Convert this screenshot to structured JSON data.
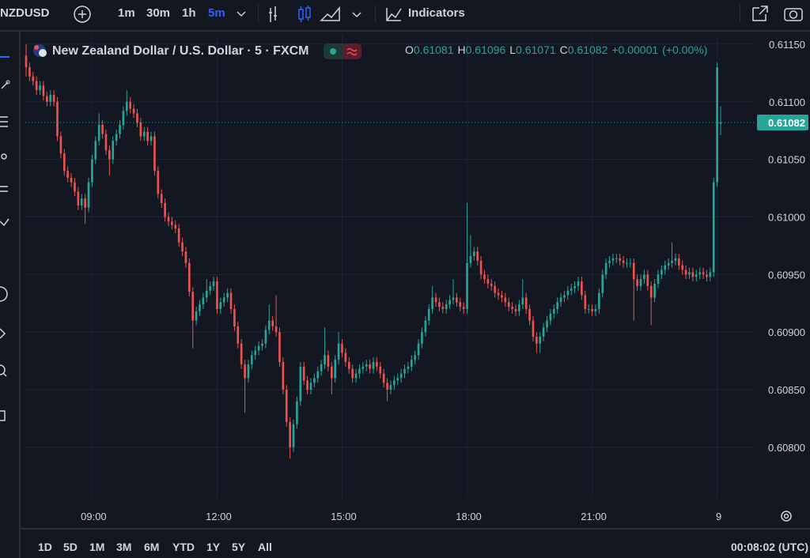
{
  "toolbar": {
    "symbol": "NZDUSD",
    "intervals": [
      "1m",
      "30m",
      "1h",
      "5m"
    ],
    "indicators": "Indicators"
  },
  "chart_data": {
    "type": "candlestick",
    "title": "New Zealand Dollar / U.S. Dollar · 5 · FXCM",
    "ohlc_labels": [
      "O",
      "H",
      "L",
      "C"
    ],
    "change": "+0.00001",
    "change_percent": "(+0.00%)",
    "up_color": "#26a69a",
    "down_color": "#ef5350",
    "grid": true,
    "categories": [
      null,
      null,
      null,
      null,
      null,
      null,
      null,
      null,
      null,
      null,
      null,
      null,
      null,
      null,
      null,
      null,
      null,
      null,
      null,
      "09:00",
      null,
      null,
      null,
      null,
      null,
      null,
      null,
      null,
      null,
      null,
      null,
      null,
      null,
      null,
      null,
      null,
      null,
      null,
      null,
      null,
      null,
      null,
      null,
      null,
      null,
      null,
      null,
      null,
      null,
      null,
      null,
      null,
      null,
      null,
      null,
      "12:00",
      null,
      null,
      null,
      null,
      null,
      null,
      null,
      null,
      null,
      null,
      null,
      null,
      null,
      null,
      null,
      null,
      null,
      null,
      null,
      null,
      null,
      null,
      null,
      null,
      null,
      null,
      null,
      null,
      null,
      null,
      null,
      null,
      null,
      null,
      null,
      "15:00",
      null,
      null,
      null,
      null,
      null,
      null,
      null,
      null,
      null,
      null,
      null,
      null,
      null,
      null,
      null,
      null,
      null,
      null,
      null,
      null,
      null,
      null,
      null,
      null,
      null,
      null,
      null,
      null,
      null,
      null,
      null,
      null,
      null,
      null,
      null,
      "18:00",
      null,
      null,
      null,
      null,
      null,
      null,
      null,
      null,
      null,
      null,
      null,
      null,
      null,
      null,
      null,
      null,
      null,
      null,
      null,
      null,
      null,
      null,
      null,
      null,
      null,
      null,
      null,
      null,
      null,
      null,
      null,
      null,
      null,
      null,
      null,
      "21:00",
      null,
      null,
      null,
      null,
      null,
      null,
      null,
      null,
      null,
      null,
      null,
      null,
      null,
      null,
      null,
      null,
      null,
      null,
      null,
      null,
      null,
      null,
      null,
      null,
      null,
      null,
      null,
      null,
      null,
      null,
      null,
      null,
      null,
      null,
      null,
      "9",
      null
    ],
    "open": [
      0.6114,
      0.6113,
      0.61122,
      0.61118,
      0.6111,
      0.61114,
      0.61105,
      0.611,
      0.61106,
      0.611,
      0.6107,
      0.61055,
      0.6104,
      0.61034,
      0.6103,
      0.61022,
      0.6101,
      0.61016,
      0.61008,
      0.6103,
      0.6105,
      0.61066,
      0.6108,
      0.61072,
      0.61058,
      0.6105,
      0.61066,
      0.61072,
      0.6108,
      0.61092,
      0.611,
      0.61094,
      0.6109,
      0.61082,
      0.6107,
      0.61074,
      0.61066,
      0.6107,
      0.6104,
      0.6102,
      0.61012,
      0.61,
      0.60996,
      0.60993,
      0.6099,
      0.60978,
      0.6097,
      0.6096,
      0.60935,
      0.6091,
      0.60918,
      0.60924,
      0.6093,
      0.60936,
      0.6094,
      0.60944,
      0.6092,
      0.60926,
      0.6093,
      0.60934,
      0.6092,
      0.60905,
      0.6089,
      0.60872,
      0.6086,
      0.60872,
      0.6088,
      0.60884,
      0.60888,
      0.6089,
      0.60902,
      0.6091,
      0.60905,
      0.609,
      0.60874,
      0.6085,
      0.60822,
      0.608,
      0.6082,
      0.6084,
      0.6087,
      0.60858,
      0.6085,
      0.60856,
      0.6086,
      0.60866,
      0.60872,
      0.6088,
      0.6087,
      0.6086,
      0.60876,
      0.6089,
      0.60882,
      0.60874,
      0.60868,
      0.6086,
      0.60864,
      0.60868,
      0.6087,
      0.60872,
      0.60868,
      0.60874,
      0.6087,
      0.60864,
      0.60856,
      0.6085,
      0.60854,
      0.60858,
      0.6086,
      0.60864,
      0.60868,
      0.6087,
      0.60876,
      0.6088,
      0.6089,
      0.609,
      0.6091,
      0.6092,
      0.6093,
      0.60926,
      0.60922,
      0.6092,
      0.60924,
      0.60928,
      0.6093,
      0.60926,
      0.60922,
      0.6092,
      0.6096,
      0.60966,
      0.6097,
      0.60962,
      0.6095,
      0.60946,
      0.60942,
      0.6094,
      0.60934,
      0.60932,
      0.6093,
      0.60926,
      0.60922,
      0.6092,
      0.60918,
      0.60924,
      0.6093,
      0.6092,
      0.6091,
      0.60896,
      0.6089,
      0.60896,
      0.60904,
      0.6091,
      0.60916,
      0.6092,
      0.60926,
      0.6093,
      0.60932,
      0.60936,
      0.60938,
      0.6094,
      0.60944,
      0.60932,
      0.6092,
      0.6092,
      0.60918,
      0.6092,
      0.60934,
      0.6095,
      0.6096,
      0.60962,
      0.60964,
      0.60964,
      0.60962,
      0.6096,
      0.6096,
      0.6096,
      0.60946,
      0.6094,
      0.60946,
      0.6095,
      0.6094,
      0.6093,
      0.60942,
      0.6095,
      0.60954,
      0.60958,
      0.6096,
      0.60962,
      0.60964,
      0.60958,
      0.60954,
      0.6095,
      0.60952,
      0.60948,
      0.6095,
      0.60952,
      0.6095,
      0.60948,
      0.60952,
      0.6103,
      0.61081
    ],
    "high": [
      0.6115,
      0.61134,
      0.61126,
      0.61122,
      0.61118,
      0.61118,
      0.61109,
      0.6111,
      0.6111,
      0.61104,
      0.61074,
      0.61059,
      0.61044,
      0.61038,
      0.61034,
      0.61026,
      0.6102,
      0.6102,
      0.61034,
      0.61054,
      0.6107,
      0.6109,
      0.61084,
      0.61076,
      0.61062,
      0.6107,
      0.61076,
      0.61084,
      0.61096,
      0.6111,
      0.61104,
      0.61098,
      0.61094,
      0.61086,
      0.61078,
      0.61078,
      0.61074,
      0.61074,
      0.61044,
      0.61024,
      0.61016,
      0.61004,
      0.61,
      0.60997,
      0.60994,
      0.60982,
      0.60974,
      0.60964,
      0.60939,
      0.60922,
      0.60928,
      0.60934,
      0.60946,
      0.60944,
      0.60948,
      0.60948,
      0.6093,
      0.60934,
      0.60938,
      0.60938,
      0.60924,
      0.60909,
      0.60894,
      0.60876,
      0.60876,
      0.60884,
      0.60888,
      0.60892,
      0.60894,
      0.60906,
      0.60924,
      0.60914,
      0.60932,
      0.60904,
      0.60878,
      0.60854,
      0.60826,
      0.60824,
      0.60844,
      0.60874,
      0.60874,
      0.60862,
      0.6086,
      0.60864,
      0.6087,
      0.60876,
      0.60904,
      0.60884,
      0.60874,
      0.6088,
      0.609,
      0.60894,
      0.60886,
      0.60878,
      0.60872,
      0.60868,
      0.60872,
      0.60874,
      0.60876,
      0.60876,
      0.60878,
      0.60878,
      0.60874,
      0.60868,
      0.6086,
      0.60858,
      0.60862,
      0.60864,
      0.60868,
      0.60872,
      0.60874,
      0.6088,
      0.60884,
      0.60894,
      0.60904,
      0.60914,
      0.60924,
      0.6094,
      0.60934,
      0.6093,
      0.60926,
      0.60928,
      0.60932,
      0.60946,
      0.60934,
      0.6093,
      0.60926,
      0.61012,
      0.60984,
      0.60974,
      0.60974,
      0.60966,
      0.60954,
      0.6095,
      0.60946,
      0.60944,
      0.60938,
      0.60936,
      0.60934,
      0.6093,
      0.60926,
      0.60924,
      0.60928,
      0.60946,
      0.60934,
      0.60924,
      0.60914,
      0.609,
      0.609,
      0.60908,
      0.60914,
      0.6092,
      0.60924,
      0.6093,
      0.60934,
      0.60936,
      0.6094,
      0.60942,
      0.60944,
      0.60948,
      0.60948,
      0.60936,
      0.60924,
      0.60924,
      0.60924,
      0.60938,
      0.60954,
      0.60964,
      0.60966,
      0.60968,
      0.60968,
      0.60968,
      0.60966,
      0.60964,
      0.60964,
      0.60964,
      0.6095,
      0.6095,
      0.60954,
      0.60954,
      0.60944,
      0.60946,
      0.60954,
      0.60958,
      0.60962,
      0.60964,
      0.60978,
      0.60968,
      0.60968,
      0.60962,
      0.60958,
      0.60956,
      0.60956,
      0.60954,
      0.60956,
      0.60956,
      0.60954,
      0.60956,
      0.61034,
      0.61134,
      0.61096
    ],
    "low": [
      0.61122,
      0.61118,
      0.61114,
      0.61106,
      0.61106,
      0.61101,
      0.61096,
      0.61096,
      0.61096,
      0.61066,
      0.61051,
      0.61036,
      0.6103,
      0.61026,
      0.61018,
      0.61006,
      0.61006,
      0.60994,
      0.61004,
      0.61026,
      0.61046,
      0.61062,
      0.61068,
      0.61054,
      0.61036,
      0.61046,
      0.61062,
      0.61068,
      0.61076,
      0.61088,
      0.6109,
      0.61086,
      0.61078,
      0.61066,
      0.61066,
      0.61062,
      0.61062,
      0.61036,
      0.61016,
      0.61008,
      0.60996,
      0.60992,
      0.60989,
      0.60986,
      0.60974,
      0.60966,
      0.60956,
      0.60931,
      0.60886,
      0.60906,
      0.60914,
      0.6092,
      0.60926,
      0.60932,
      0.60936,
      0.60916,
      0.60916,
      0.60922,
      0.60926,
      0.60916,
      0.60901,
      0.60886,
      0.60868,
      0.6083,
      0.60856,
      0.60868,
      0.60876,
      0.6088,
      0.60884,
      0.60886,
      0.60898,
      0.60901,
      0.60896,
      0.6087,
      0.60846,
      0.60818,
      0.6079,
      0.60796,
      0.60816,
      0.60836,
      0.60854,
      0.60846,
      0.60846,
      0.60852,
      0.60856,
      0.60862,
      0.60868,
      0.60866,
      0.60846,
      0.60856,
      0.60872,
      0.60878,
      0.6087,
      0.60864,
      0.60856,
      0.60856,
      0.6086,
      0.60864,
      0.60866,
      0.60864,
      0.60864,
      0.60866,
      0.6086,
      0.60852,
      0.6084,
      0.60846,
      0.6085,
      0.60854,
      0.60856,
      0.6086,
      0.60864,
      0.60866,
      0.60872,
      0.60876,
      0.60886,
      0.60896,
      0.60906,
      0.60916,
      0.60922,
      0.60918,
      0.60916,
      0.60916,
      0.6092,
      0.60924,
      0.60922,
      0.60918,
      0.60916,
      0.60916,
      0.60956,
      0.60962,
      0.60958,
      0.60946,
      0.60942,
      0.60938,
      0.60936,
      0.6093,
      0.60928,
      0.60926,
      0.60922,
      0.60918,
      0.60916,
      0.60914,
      0.60914,
      0.6092,
      0.60916,
      0.60906,
      0.60892,
      0.60882,
      0.60882,
      0.60892,
      0.609,
      0.60906,
      0.60912,
      0.60916,
      0.60922,
      0.60926,
      0.60928,
      0.60932,
      0.60934,
      0.60936,
      0.60928,
      0.60916,
      0.60916,
      0.60914,
      0.60914,
      0.60916,
      0.6093,
      0.60946,
      0.60956,
      0.60958,
      0.6096,
      0.60958,
      0.60956,
      0.60956,
      0.60956,
      0.6091,
      0.60936,
      0.60936,
      0.60942,
      0.60936,
      0.60906,
      0.60926,
      0.60938,
      0.60946,
      0.6095,
      0.60954,
      0.60956,
      0.60958,
      0.60954,
      0.6095,
      0.60946,
      0.60946,
      0.60944,
      0.60944,
      0.60946,
      0.60946,
      0.60944,
      0.60944,
      0.60948,
      0.61026,
      0.61071
    ],
    "close": [
      0.6113,
      0.61122,
      0.61118,
      0.6111,
      0.61114,
      0.61105,
      0.611,
      0.61106,
      0.611,
      0.6107,
      0.61055,
      0.6104,
      0.61034,
      0.6103,
      0.61022,
      0.6101,
      0.61016,
      0.61008,
      0.6103,
      0.6105,
      0.61066,
      0.6108,
      0.61072,
      0.61058,
      0.6105,
      0.61066,
      0.61072,
      0.6108,
      0.61092,
      0.611,
      0.61094,
      0.6109,
      0.61082,
      0.6107,
      0.61074,
      0.61066,
      0.6107,
      0.6104,
      0.6102,
      0.61012,
      0.61,
      0.60996,
      0.60993,
      0.6099,
      0.60978,
      0.6097,
      0.6096,
      0.60935,
      0.6091,
      0.60918,
      0.60924,
      0.6093,
      0.60936,
      0.6094,
      0.60944,
      0.6092,
      0.60926,
      0.6093,
      0.60934,
      0.6092,
      0.60905,
      0.6089,
      0.60872,
      0.6086,
      0.60872,
      0.6088,
      0.60884,
      0.60888,
      0.6089,
      0.60902,
      0.6091,
      0.60905,
      0.609,
      0.60874,
      0.6085,
      0.60822,
      0.608,
      0.6082,
      0.6084,
      0.6087,
      0.60858,
      0.6085,
      0.60856,
      0.6086,
      0.60866,
      0.60872,
      0.6088,
      0.6087,
      0.6086,
      0.60876,
      0.6089,
      0.60882,
      0.60874,
      0.60868,
      0.6086,
      0.60864,
      0.60868,
      0.6087,
      0.60872,
      0.60868,
      0.60874,
      0.6087,
      0.60864,
      0.60856,
      0.6085,
      0.60854,
      0.60858,
      0.6086,
      0.60864,
      0.60868,
      0.6087,
      0.60876,
      0.6088,
      0.6089,
      0.609,
      0.6091,
      0.6092,
      0.6093,
      0.60926,
      0.60922,
      0.6092,
      0.60924,
      0.60928,
      0.6093,
      0.60926,
      0.60922,
      0.6092,
      0.6096,
      0.60966,
      0.6097,
      0.60962,
      0.6095,
      0.60946,
      0.60942,
      0.6094,
      0.60934,
      0.60932,
      0.6093,
      0.60926,
      0.60922,
      0.6092,
      0.60918,
      0.60924,
      0.6093,
      0.6092,
      0.6091,
      0.60896,
      0.6089,
      0.60896,
      0.60904,
      0.6091,
      0.60916,
      0.6092,
      0.60926,
      0.6093,
      0.60932,
      0.60936,
      0.60938,
      0.6094,
      0.60944,
      0.60932,
      0.6092,
      0.6092,
      0.60918,
      0.6092,
      0.60934,
      0.6095,
      0.6096,
      0.60962,
      0.60964,
      0.60964,
      0.60962,
      0.6096,
      0.6096,
      0.6096,
      0.60946,
      0.6094,
      0.60946,
      0.6095,
      0.6094,
      0.6093,
      0.60942,
      0.6095,
      0.60954,
      0.60958,
      0.6096,
      0.60962,
      0.60964,
      0.60958,
      0.60954,
      0.6095,
      0.60952,
      0.60948,
      0.6095,
      0.60952,
      0.6095,
      0.60948,
      0.60952,
      0.6103,
      0.6113,
      0.61082
    ],
    "ylim": [
      0.60756,
      0.611575
    ],
    "yticks": [
      {
        "value": 0.6115,
        "label": "0.61150"
      },
      {
        "value": 0.611,
        "label": "0.61100"
      },
      {
        "value": 0.6105,
        "label": "0.61050"
      },
      {
        "value": 0.61,
        "label": "0.61000"
      },
      {
        "value": 0.6095,
        "label": "0.60950"
      },
      {
        "value": 0.609,
        "label": "0.60900"
      },
      {
        "value": 0.6085,
        "label": "0.60850"
      },
      {
        "value": 0.608,
        "label": "0.60800"
      }
    ]
  },
  "bottom_bar": {
    "ranges": [
      "1D",
      "5D",
      "1M",
      "3M",
      "6M",
      "YTD",
      "1Y",
      "5Y",
      "All"
    ],
    "clock": "00:08:02 (UTC)"
  }
}
